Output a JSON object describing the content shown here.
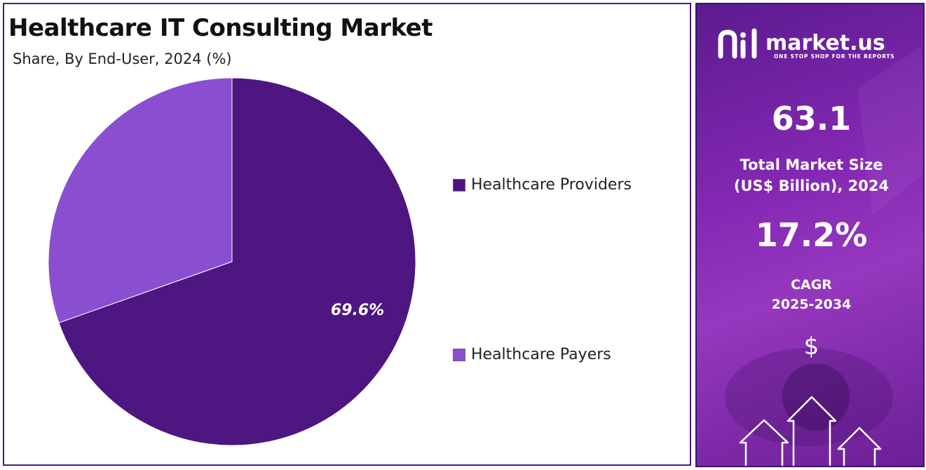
{
  "chart_data": {
    "type": "pie",
    "title": "Healthcare IT Consulting Market",
    "subtitle": "Share, By End-User, 2024 (%)",
    "categories": [
      "Healthcare Providers",
      "Healthcare Payers"
    ],
    "values": [
      69.6,
      30.4
    ],
    "data_labels": [
      "69.6%",
      ""
    ],
    "colors": [
      "#4d1680",
      "#8a4fd0"
    ],
    "legend_position": "right"
  },
  "side_panel": {
    "logo_text": "market.us",
    "logo_tagline": "ONE STOP SHOP FOR THE REPORTS",
    "market_size_value": "63.1",
    "market_size_label_line1": "Total Market Size",
    "market_size_label_line2": "(US$ Billion), 2024",
    "cagr_value": "17.2%",
    "cagr_label_line1": "CAGR",
    "cagr_label_line2": "2025-2034",
    "currency_symbol": "$",
    "decor_icons": [
      "bar-chart-icon",
      "growth-arrows-icon"
    ]
  }
}
